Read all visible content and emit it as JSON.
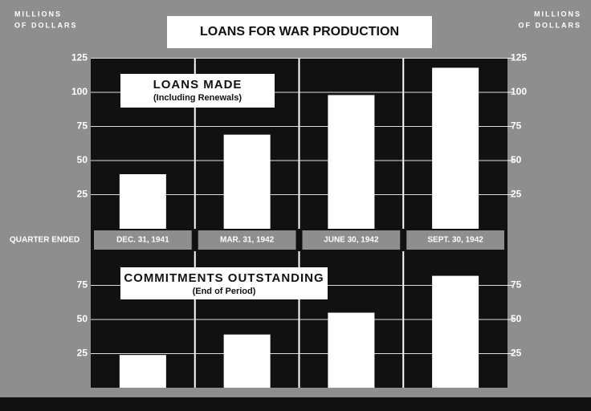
{
  "chart_data": [
    {
      "type": "bar",
      "title": "LOANS FOR WAR PRODUCTION",
      "ylabel": [
        "MILLIONS",
        "OF DOLLARS"
      ],
      "xlabel": "QUARTER ENDED",
      "label": "LOANS MADE",
      "note": "(Including Renewals)",
      "categories": [
        "DEC. 31, 1941",
        "MAR. 31, 1942",
        "JUNE 30, 1942",
        "SEPT. 30, 1942"
      ],
      "values": [
        40,
        69,
        98,
        118
      ],
      "color": "#ffffff",
      "ylim": [
        0,
        125
      ],
      "yticks": [
        25,
        50,
        75,
        100,
        125
      ],
      "grid": true
    },
    {
      "type": "bar",
      "label": "COMMITMENTS OUTSTANDING",
      "note": "(End of Period)",
      "categories": [
        "DEC. 31, 1941",
        "MAR. 31, 1942",
        "JUNE 30, 1942",
        "SEPT. 30, 1942"
      ],
      "values": [
        24,
        39,
        55,
        82
      ],
      "color": "#ffffff",
      "ylim": [
        0,
        100
      ],
      "yticks": [
        25,
        50,
        75
      ],
      "grid": true
    }
  ]
}
